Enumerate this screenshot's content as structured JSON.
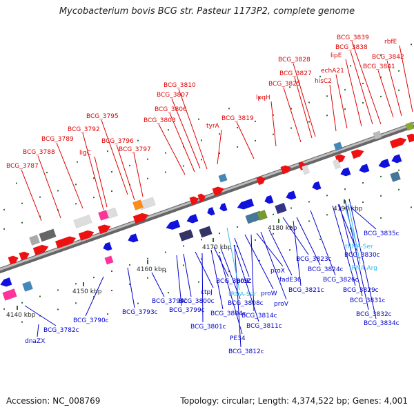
{
  "title": "Mycobacterium bovis BCG str. Pasteur 1173P2, complete genome",
  "footer": {
    "accession": "Accession: NC_008769",
    "summary": "Topology: circular; Length: 4,374,522 bp; Genes: 4,001"
  },
  "colors": {
    "forward_label": "#dd0000",
    "reverse_label": "#0000cc",
    "rna_label": "#33bbee",
    "backbone": "#888888"
  },
  "ticks": [
    "4140 kbp",
    "4150 kbp",
    "4160 kbp",
    "4170 kbp",
    "4180 kbp",
    "4190 kbp"
  ],
  "forward_labels": [
    "BCG_3787",
    "BCG_3788",
    "BCG_3789",
    "ligC",
    "BCG_3792",
    "BCG_3795",
    "BCG_3796",
    "BCG_3797",
    "BCG_3803",
    "BCG_3806",
    "BCG_3807",
    "BCG_3810",
    "tyrA",
    "BCG_3819",
    "lpqH",
    "BCG_3825",
    "BCG_3827",
    "BCG_3828",
    "hisC2",
    "echA21",
    "lipE",
    "BCG_3838",
    "BCG_3839",
    "BCG_3841",
    "BCG_3842",
    "rbfE"
  ],
  "reverse_labels": [
    "dnaZX",
    "BCG_3782c",
    "BCG_3790c",
    "BCG_3793c",
    "BCG_3794c",
    "BCG_3799c",
    "BCG_3800c",
    "ctpJ",
    "BCG_3801c",
    "PE34",
    "BCG_3804c",
    "BCG_3808c",
    "BCG_3809c",
    "BCG_3811c",
    "BCG_3812c",
    "proZ",
    "proW",
    "BCG_3814c",
    "proV",
    "proX",
    "fadE36",
    "BCG_3821c",
    "BCG_3823c",
    "BCG_3824c",
    "BCG_3826c",
    "BCG_3829c",
    "BCG_3830c",
    "BCG_3831c",
    "BCG_3832c",
    "BCG_3834c",
    "BCG_3835c"
  ],
  "rna_labels": [
    "tRNA-Ser",
    "tRNA-Ser",
    "tRNA-Arg"
  ]
}
